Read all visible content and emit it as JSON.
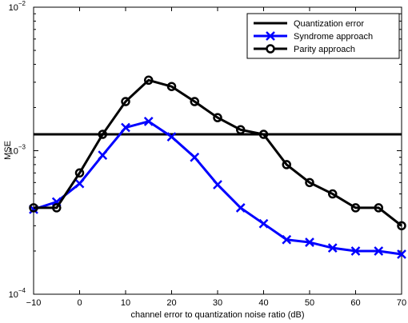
{
  "chart_data": {
    "type": "line",
    "title": "",
    "xlabel": "channel error to quantization noise ratio (dB)",
    "ylabel": "MSE",
    "xlim": [
      -10,
      70
    ],
    "ylim": [
      0.0001,
      0.01
    ],
    "yscale": "log",
    "grid": false,
    "legend_position": "top-right",
    "x_ticks": [
      -10,
      0,
      10,
      20,
      30,
      40,
      50,
      60,
      70
    ],
    "x_tick_labels": [
      "−10",
      "0",
      "10",
      "20",
      "30",
      "40",
      "50",
      "60",
      "70"
    ],
    "y_ticks": [
      0.0001,
      0.001,
      0.01
    ],
    "y_tick_bases": [
      "10",
      "10",
      "10"
    ],
    "y_tick_exponents": [
      "−4",
      "−3",
      "−2"
    ],
    "series": [
      {
        "name": "Quantization error",
        "color": "#000000",
        "marker": "none",
        "x": [
          -10,
          70
        ],
        "y": [
          0.0013,
          0.0013
        ]
      },
      {
        "name": "Syndrome approach",
        "color": "#0000ff",
        "marker": "x",
        "x": [
          -10,
          -5,
          0,
          5,
          10,
          15,
          20,
          25,
          30,
          35,
          40,
          45,
          50,
          55,
          60,
          65,
          70
        ],
        "y": [
          0.00039,
          0.00044,
          0.00059,
          0.00093,
          0.00145,
          0.0016,
          0.00125,
          0.0009,
          0.00058,
          0.0004,
          0.00031,
          0.00024,
          0.00023,
          0.00021,
          0.0002,
          0.0002,
          0.00019
        ]
      },
      {
        "name": "Parity approach",
        "color": "#000000",
        "marker": "circle",
        "x": [
          -10,
          -5,
          0,
          5,
          10,
          15,
          20,
          25,
          30,
          35,
          40,
          45,
          50,
          55,
          60,
          65,
          70
        ],
        "y": [
          0.0004,
          0.0004,
          0.0007,
          0.0013,
          0.0022,
          0.0031,
          0.0028,
          0.0022,
          0.0017,
          0.0014,
          0.0013,
          0.0008,
          0.0006,
          0.0005,
          0.0004,
          0.0004,
          0.0003
        ]
      }
    ]
  }
}
